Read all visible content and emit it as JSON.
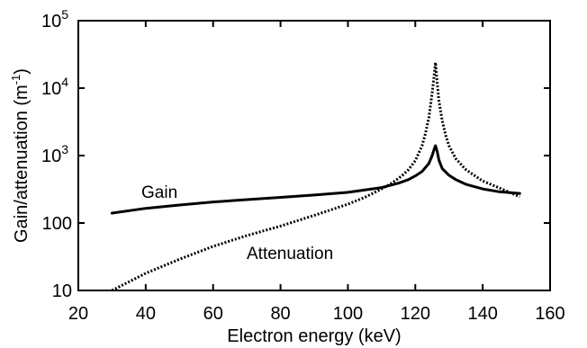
{
  "chart_data": {
    "type": "line",
    "xlabel": "Electron energy (keV)",
    "ylabel_main": "Gain/attenuation (m",
    "ylabel_sup": "-1",
    "ylabel_close": ")",
    "x_ticks": [
      {
        "value": 20,
        "label": "20"
      },
      {
        "value": 40,
        "label": "40"
      },
      {
        "value": 60,
        "label": "60"
      },
      {
        "value": 80,
        "label": "80"
      },
      {
        "value": 100,
        "label": "100"
      },
      {
        "value": 120,
        "label": "120"
      },
      {
        "value": 140,
        "label": "140"
      },
      {
        "value": 160,
        "label": "160"
      }
    ],
    "y_ticks": [
      {
        "value": 10,
        "base": "10",
        "exp": ""
      },
      {
        "value": 100,
        "base": "100",
        "exp": ""
      },
      {
        "value": 1000,
        "base": "10",
        "exp": "3"
      },
      {
        "value": 10000,
        "base": "10",
        "exp": "4"
      },
      {
        "value": 100000,
        "base": "10",
        "exp": "5"
      }
    ],
    "xlim": [
      20,
      160
    ],
    "ylim": [
      10,
      100000
    ],
    "yscale": "log",
    "grid": false,
    "series": [
      {
        "name": "Gain",
        "style": "solid",
        "x": [
          30,
          40,
          50,
          60,
          70,
          80,
          90,
          100,
          110,
          115,
          118,
          120,
          122,
          124,
          125,
          125.5,
          126,
          126.5,
          127,
          128,
          130,
          132,
          135,
          140,
          145,
          151
        ],
        "y": [
          140,
          165,
          185,
          205,
          222,
          240,
          260,
          285,
          335,
          390,
          440,
          500,
          580,
          760,
          1000,
          1200,
          1400,
          1150,
          860,
          640,
          510,
          440,
          375,
          320,
          290,
          275
        ]
      },
      {
        "name": "Attenuation",
        "style": "dotted",
        "x": [
          30,
          40,
          50,
          60,
          70,
          80,
          90,
          100,
          105,
          110,
          113,
          116,
          118,
          120,
          122,
          123,
          124,
          125,
          125.5,
          126,
          126.5,
          127,
          128,
          129,
          130,
          132,
          135,
          140,
          145,
          151
        ],
        "y": [
          10,
          18,
          29,
          45,
          65,
          90,
          130,
          190,
          240,
          320,
          390,
          500,
          620,
          840,
          1400,
          2100,
          3600,
          8500,
          14000,
          24000,
          12000,
          6500,
          3300,
          2000,
          1400,
          900,
          620,
          420,
          330,
          245
        ]
      }
    ]
  }
}
